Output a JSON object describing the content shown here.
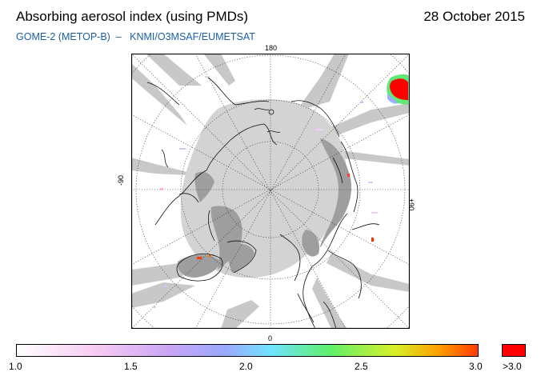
{
  "header": {
    "title": "Absorbing aerosol index (using PMDs)",
    "date": "28 October 2015",
    "subtitle": "GOME-2 (METOP-B)  –   KNMI/O3MSAF/EUMETSAT"
  },
  "map": {
    "projection": "north-polar-stereographic",
    "longitude_labels": {
      "top": "180",
      "bottom": "0",
      "left": "-90",
      "right": "+90"
    },
    "colors": {
      "no_data": "#d3d3d3",
      "land_nodata": "#9e9e9e",
      "high_aerosol": "#ff0000"
    }
  },
  "colorbar": {
    "tick_labels": [
      "1.0",
      "1.5",
      "2.0",
      "2.5",
      "3.0"
    ],
    "overflow_label": ">3.0",
    "range": [
      1.0,
      3.0
    ],
    "overflow_color": "#ff0000",
    "gradient_colors": [
      "#ffffff",
      "#f6c8f2",
      "#c8a6f4",
      "#9aa8ff",
      "#6fe3ff",
      "#5ef06a",
      "#d6f028",
      "#ff9a00",
      "#ff3a00"
    ]
  }
}
